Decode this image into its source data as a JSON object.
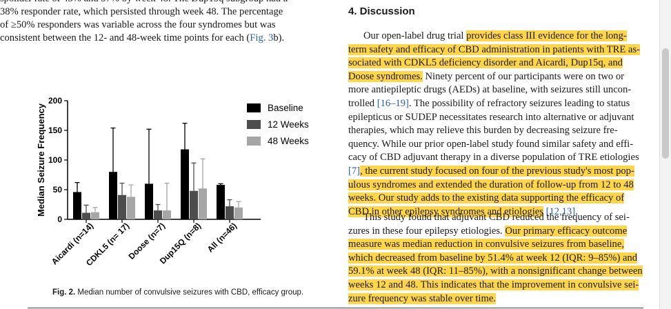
{
  "left_text": {
    "lines": [
      "sponder rate of 43% and 57% by week 48. The Dup15q subgroup had a",
      "38% responder rate, which persisted through week 48. The percentage",
      "of ≥50% responders was variable across the four syndromes but was"
    ],
    "last_line_pre": "consistent between the 12- and 48-week time points for each (",
    "last_line_ref": "Fig. 3",
    "last_line_post": "b)."
  },
  "chart_data": {
    "type": "bar",
    "categories": [
      "Aicardi (n=14)",
      "CDKL5 (n= 17)",
      "Doose (n=7)",
      "Dup15Q (n=8)",
      "All (n=46)"
    ],
    "series": [
      {
        "name": "Baseline",
        "color": "#000000",
        "values": [
          46,
          80,
          60,
          118,
          58
        ],
        "errors": [
          16,
          74,
          92,
          44,
          2
        ]
      },
      {
        "name": "12 Weeks",
        "color": "#4d4d4d",
        "values": [
          11,
          41,
          15,
          48,
          22
        ],
        "errors": [
          13,
          20,
          10,
          47,
          11
        ]
      },
      {
        "name": "48 Weeks",
        "color": "#a6a6a6",
        "values": [
          12,
          38,
          15,
          52,
          20
        ],
        "errors": [
          8,
          20,
          46,
          50,
          10
        ]
      }
    ],
    "ylabel": "Median Seizure Frequency",
    "ylim": [
      0,
      200
    ],
    "yticks": [
      "0",
      "50",
      "100",
      "150",
      "200"
    ],
    "legend_position": "top-right"
  },
  "caption": {
    "label": "Fig. 2.",
    "text": " Median number of convulsive seizures with CBD, efficacy group."
  },
  "discussion": {
    "title": "4. Discussion",
    "p1": [
      [
        {
          "t": "Our open-label drug trial ",
          "h": false
        },
        {
          "t": "provides class III evidence for the long-",
          "h": true
        }
      ],
      [
        {
          "t": "term safety and efficacy of CBD administration in patients with TRE as-",
          "h": true
        }
      ],
      [
        {
          "t": "sociated with CDKL5 deficiency disorder and Aicardi, Dup15q, and",
          "h": true
        }
      ],
      [
        {
          "t": "Doose syndromes.",
          "h": true
        },
        {
          "t": " Ninety percent of our participants were on two or",
          "h": false
        }
      ],
      [
        {
          "t": "more antiepileptic drugs (AEDs) at baseline, with seizures still uncon-",
          "h": false
        }
      ],
      [
        {
          "t": "trolled ",
          "h": false
        },
        {
          "t": "[16–19]",
          "r": true
        },
        {
          "t": ". The possibility of refractory seizures leading to status",
          "h": false
        }
      ],
      [
        {
          "t": "epilepticus or SUDEP necessitates research into alternative or adjuvant",
          "h": false
        }
      ],
      [
        {
          "t": "therapies, which may relieve this burden by decreasing seizure fre-",
          "h": false
        }
      ],
      [
        {
          "t": "quency. While our prior open-label study found similar safety and effi-",
          "h": false
        }
      ],
      [
        {
          "t": "cacy of CBD adjuvant therapy in a diverse population of TRE etiologies",
          "h": false
        }
      ],
      [
        {
          "t": "[7]",
          "r": true
        },
        {
          "t": ", the current study focused on four of the previous study's most pop-",
          "h": true
        }
      ],
      [
        {
          "t": "ulous syndromes and extended the duration of follow-up from 12 to 48",
          "h": true
        }
      ],
      [
        {
          "t": "weeks. Our study adds to the existing data supporting the efficacy of",
          "h": true
        }
      ],
      [
        {
          "t": "CBD in other epilepsy syndromes and etiologies",
          "h": true
        },
        {
          "t": " ",
          "h": false
        },
        {
          "t": "[12,13]",
          "r": true
        },
        {
          "t": ".",
          "h": false
        }
      ]
    ],
    "p2": [
      [
        {
          "t": "This study found that adjuvant CBD reduced the frequency of sei-",
          "h": false
        }
      ],
      [
        {
          "t": "zures in these four epilepsy etiologies. ",
          "h": false
        },
        {
          "t": "Our primary efficacy outcome",
          "h": true
        }
      ],
      [
        {
          "t": "measure was median reduction in convulsive seizures from baseline,",
          "h": true
        }
      ],
      [
        {
          "t": "which decreased from baseline by 51.4% at week 12 (IQR: 9–85%) and",
          "h": true
        }
      ],
      [
        {
          "t": "59.1% at week 48 (IQR: 11–85%), with a nonsignificant change between",
          "h": true
        }
      ],
      [
        {
          "t": "weeks 12 and 48. This indicates that the improvement in convulsive sei-",
          "h": true
        }
      ],
      [
        {
          "t": "zure frequency was stable over time.",
          "h": true
        }
      ]
    ]
  },
  "colors": {
    "highlight": "#ffd54a",
    "link": "#2a5db0"
  }
}
